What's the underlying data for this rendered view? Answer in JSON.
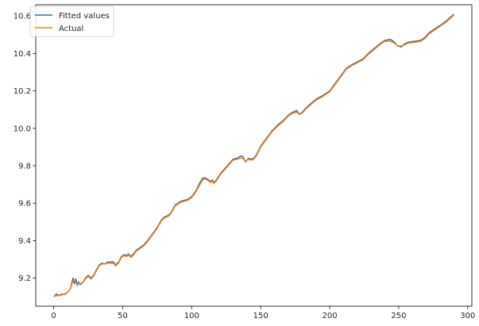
{
  "chart_data": {
    "type": "line",
    "title": "",
    "xlabel": "",
    "ylabel": "",
    "xlim": [
      -13,
      303
    ],
    "ylim": [
      9.05,
      10.66
    ],
    "x_ticks": [
      0,
      50,
      100,
      150,
      200,
      250,
      300
    ],
    "y_ticks": [
      9.2,
      9.4,
      9.6,
      9.8,
      10.0,
      10.2,
      10.4,
      10.6
    ],
    "y_tick_labels": [
      "9.2",
      "9.4",
      "9.6",
      "9.8",
      "10.0",
      "10.2",
      "10.4",
      "10.6"
    ],
    "grid": false,
    "legend_position": "top-left",
    "series": [
      {
        "name": "Fitted values",
        "color": "#1f77b4",
        "points": [
          [
            0,
            9.1
          ],
          [
            2,
            9.115
          ],
          [
            4,
            9.105
          ],
          [
            6,
            9.115
          ],
          [
            8,
            9.112
          ],
          [
            10,
            9.125
          ],
          [
            12,
            9.14
          ],
          [
            14,
            9.2
          ],
          [
            15,
            9.17
          ],
          [
            16,
            9.195
          ],
          [
            17,
            9.16
          ],
          [
            18,
            9.18
          ],
          [
            19,
            9.165
          ],
          [
            21,
            9.175
          ],
          [
            23,
            9.2
          ],
          [
            25,
            9.215
          ],
          [
            27,
            9.2
          ],
          [
            29,
            9.215
          ],
          [
            31,
            9.245
          ],
          [
            33,
            9.27
          ],
          [
            35,
            9.28
          ],
          [
            37,
            9.275
          ],
          [
            39,
            9.285
          ],
          [
            41,
            9.285
          ],
          [
            43,
            9.287
          ],
          [
            45,
            9.27
          ],
          [
            47,
            9.285
          ],
          [
            49,
            9.315
          ],
          [
            51,
            9.325
          ],
          [
            53,
            9.32
          ],
          [
            54,
            9.33
          ],
          [
            56,
            9.315
          ],
          [
            58,
            9.33
          ],
          [
            60,
            9.35
          ],
          [
            65,
            9.375
          ],
          [
            68,
            9.4
          ],
          [
            72,
            9.44
          ],
          [
            75,
            9.47
          ],
          [
            78,
            9.51
          ],
          [
            80,
            9.525
          ],
          [
            83,
            9.535
          ],
          [
            85,
            9.55
          ],
          [
            88,
            9.59
          ],
          [
            92,
            9.61
          ],
          [
            97,
            9.62
          ],
          [
            100,
            9.635
          ],
          [
            103,
            9.665
          ],
          [
            106,
            9.71
          ],
          [
            108,
            9.735
          ],
          [
            110,
            9.735
          ],
          [
            112,
            9.725
          ],
          [
            114,
            9.715
          ],
          [
            115,
            9.725
          ],
          [
            116,
            9.71
          ],
          [
            118,
            9.725
          ],
          [
            121,
            9.76
          ],
          [
            124,
            9.785
          ],
          [
            127,
            9.81
          ],
          [
            130,
            9.835
          ],
          [
            133,
            9.84
          ],
          [
            135,
            9.85
          ],
          [
            137,
            9.85
          ],
          [
            139,
            9.82
          ],
          [
            141,
            9.84
          ],
          [
            143,
            9.835
          ],
          [
            145,
            9.84
          ],
          [
            147,
            9.86
          ],
          [
            150,
            9.905
          ],
          [
            154,
            9.945
          ],
          [
            158,
            9.985
          ],
          [
            162,
            10.015
          ],
          [
            166,
            10.04
          ],
          [
            170,
            10.07
          ],
          [
            173,
            10.085
          ],
          [
            176,
            10.095
          ],
          [
            178,
            10.075
          ],
          [
            180,
            10.085
          ],
          [
            183,
            10.11
          ],
          [
            186,
            10.13
          ],
          [
            190,
            10.155
          ],
          [
            195,
            10.175
          ],
          [
            200,
            10.2
          ],
          [
            204,
            10.24
          ],
          [
            208,
            10.28
          ],
          [
            212,
            10.32
          ],
          [
            216,
            10.34
          ],
          [
            220,
            10.355
          ],
          [
            224,
            10.37
          ],
          [
            228,
            10.4
          ],
          [
            232,
            10.425
          ],
          [
            236,
            10.45
          ],
          [
            240,
            10.47
          ],
          [
            244,
            10.475
          ],
          [
            247,
            10.46
          ],
          [
            249,
            10.44
          ],
          [
            252,
            10.435
          ],
          [
            254,
            10.45
          ],
          [
            257,
            10.46
          ],
          [
            262,
            10.465
          ],
          [
            266,
            10.47
          ],
          [
            269,
            10.485
          ],
          [
            272,
            10.51
          ],
          [
            276,
            10.53
          ],
          [
            280,
            10.55
          ],
          [
            284,
            10.57
          ],
          [
            287,
            10.59
          ],
          [
            290,
            10.61
          ]
        ]
      },
      {
        "name": "Actual",
        "color": "#ff7f0e",
        "points": [
          [
            0,
            9.105
          ],
          [
            2,
            9.105
          ],
          [
            4,
            9.11
          ],
          [
            6,
            9.11
          ],
          [
            8,
            9.115
          ],
          [
            10,
            9.125
          ],
          [
            12,
            9.14
          ],
          [
            14,
            9.185
          ],
          [
            15,
            9.19
          ],
          [
            16,
            9.175
          ],
          [
            17,
            9.165
          ],
          [
            18,
            9.17
          ],
          [
            19,
            9.17
          ],
          [
            21,
            9.175
          ],
          [
            23,
            9.195
          ],
          [
            25,
            9.21
          ],
          [
            27,
            9.195
          ],
          [
            29,
            9.21
          ],
          [
            31,
            9.24
          ],
          [
            33,
            9.265
          ],
          [
            35,
            9.275
          ],
          [
            37,
            9.275
          ],
          [
            39,
            9.28
          ],
          [
            41,
            9.28
          ],
          [
            43,
            9.28
          ],
          [
            45,
            9.265
          ],
          [
            47,
            9.28
          ],
          [
            49,
            9.31
          ],
          [
            51,
            9.32
          ],
          [
            53,
            9.315
          ],
          [
            54,
            9.325
          ],
          [
            56,
            9.31
          ],
          [
            58,
            9.325
          ],
          [
            60,
            9.345
          ],
          [
            65,
            9.37
          ],
          [
            68,
            9.395
          ],
          [
            72,
            9.435
          ],
          [
            75,
            9.465
          ],
          [
            78,
            9.505
          ],
          [
            80,
            9.52
          ],
          [
            83,
            9.53
          ],
          [
            85,
            9.545
          ],
          [
            88,
            9.585
          ],
          [
            92,
            9.605
          ],
          [
            97,
            9.615
          ],
          [
            100,
            9.63
          ],
          [
            103,
            9.66
          ],
          [
            106,
            9.7
          ],
          [
            108,
            9.725
          ],
          [
            110,
            9.73
          ],
          [
            112,
            9.72
          ],
          [
            114,
            9.71
          ],
          [
            115,
            9.72
          ],
          [
            116,
            9.705
          ],
          [
            118,
            9.72
          ],
          [
            121,
            9.755
          ],
          [
            124,
            9.78
          ],
          [
            127,
            9.805
          ],
          [
            130,
            9.83
          ],
          [
            133,
            9.835
          ],
          [
            135,
            9.84
          ],
          [
            137,
            9.84
          ],
          [
            139,
            9.825
          ],
          [
            141,
            9.835
          ],
          [
            143,
            9.83
          ],
          [
            145,
            9.835
          ],
          [
            147,
            9.855
          ],
          [
            150,
            9.9
          ],
          [
            154,
            9.94
          ],
          [
            158,
            9.98
          ],
          [
            162,
            10.01
          ],
          [
            166,
            10.035
          ],
          [
            170,
            10.065
          ],
          [
            173,
            10.08
          ],
          [
            176,
            10.085
          ],
          [
            178,
            10.08
          ],
          [
            180,
            10.08
          ],
          [
            183,
            10.105
          ],
          [
            186,
            10.125
          ],
          [
            190,
            10.15
          ],
          [
            195,
            10.17
          ],
          [
            200,
            10.195
          ],
          [
            204,
            10.235
          ],
          [
            208,
            10.275
          ],
          [
            212,
            10.315
          ],
          [
            216,
            10.335
          ],
          [
            220,
            10.35
          ],
          [
            224,
            10.365
          ],
          [
            228,
            10.395
          ],
          [
            232,
            10.42
          ],
          [
            236,
            10.445
          ],
          [
            240,
            10.465
          ],
          [
            244,
            10.465
          ],
          [
            247,
            10.455
          ],
          [
            249,
            10.44
          ],
          [
            252,
            10.44
          ],
          [
            254,
            10.445
          ],
          [
            257,
            10.455
          ],
          [
            262,
            10.46
          ],
          [
            266,
            10.465
          ],
          [
            269,
            10.48
          ],
          [
            272,
            10.505
          ],
          [
            276,
            10.525
          ],
          [
            280,
            10.545
          ],
          [
            284,
            10.565
          ],
          [
            287,
            10.585
          ],
          [
            290,
            10.605
          ]
        ]
      }
    ]
  }
}
